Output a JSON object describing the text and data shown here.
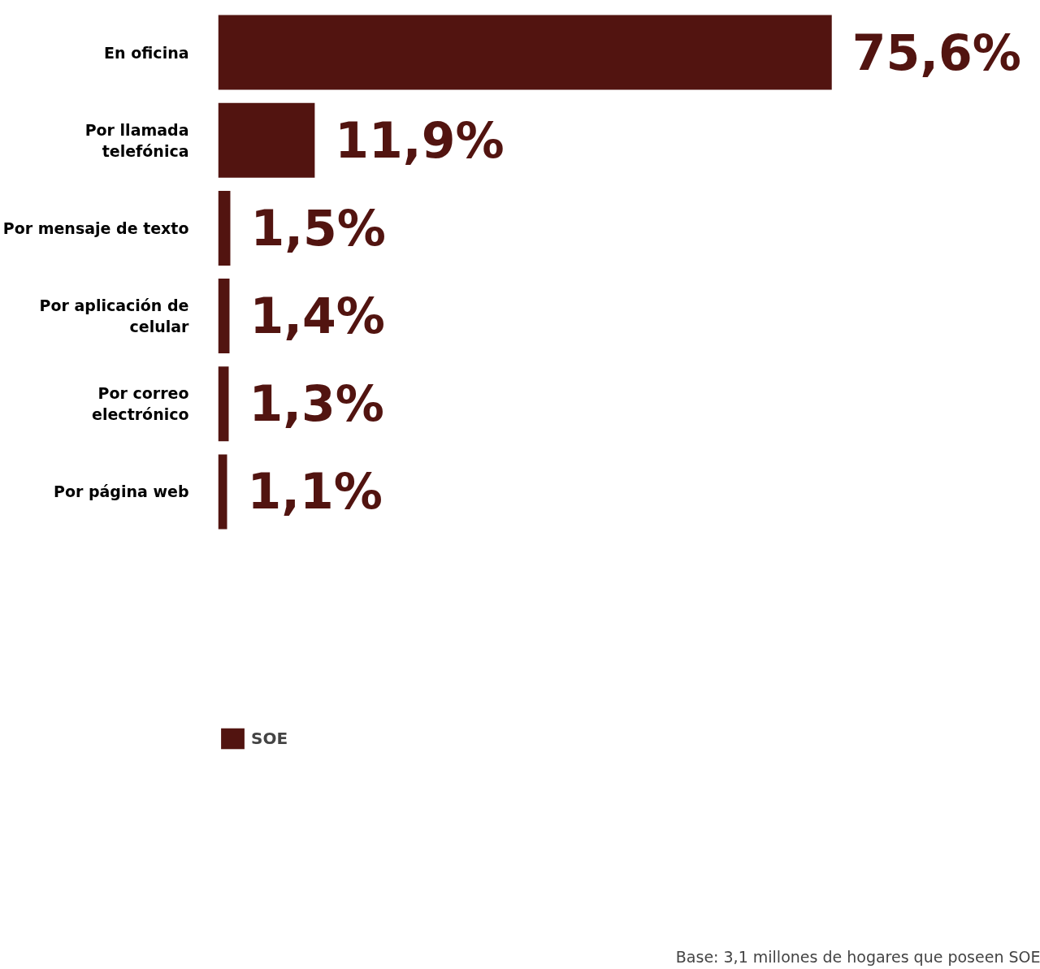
{
  "chart_data": {
    "type": "bar",
    "orientation": "horizontal",
    "categories": [
      "En oficina",
      "Por llamada telefónica",
      "Por mensaje de texto",
      "Por aplicación de celular",
      "Por correo electrónico",
      "Por página web"
    ],
    "series": [
      {
        "name": "SOE",
        "color": "#521410",
        "values": [
          75.6,
          11.9,
          1.5,
          1.4,
          1.3,
          1.1
        ],
        "value_labels": [
          "75,6%",
          "11,9%",
          "1,5%",
          "1,4%",
          "1,3%",
          "1,1%"
        ]
      }
    ],
    "tick_labels": "y",
    "grid": false,
    "legend": "bottom left",
    "annotations": [
      "Base: 3,1 millones de hogares que poseen SOE"
    ]
  }
}
